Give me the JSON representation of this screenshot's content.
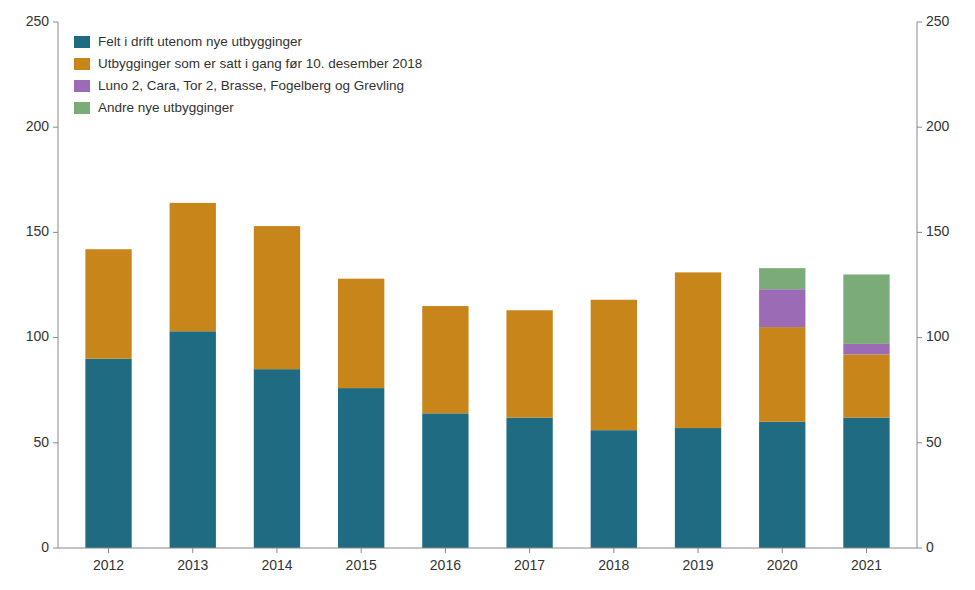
{
  "chart_data": {
    "type": "bar",
    "stacked": true,
    "categories": [
      "2012",
      "2013",
      "2014",
      "2015",
      "2016",
      "2017",
      "2018",
      "2019",
      "2020",
      "2021"
    ],
    "series": [
      {
        "name": "Felt i drift utenom nye utbygginger",
        "color": "#1e6b82",
        "values": [
          90,
          103,
          85,
          76,
          64,
          62,
          56,
          57,
          60,
          62
        ]
      },
      {
        "name": "Utbygginger som er satt i gang før 10. desember 2018",
        "color": "#c8861a",
        "values": [
          52,
          61,
          68,
          52,
          51,
          51,
          62,
          74,
          45,
          30
        ]
      },
      {
        "name": "Luno 2, Cara, Tor 2, Brasse, Fogelberg og Grevling",
        "color": "#9b6bb5",
        "values": [
          0,
          0,
          0,
          0,
          0,
          0,
          0,
          0,
          18,
          5
        ]
      },
      {
        "name": "Andre nye utbygginger",
        "color": "#7aab78",
        "values": [
          0,
          0,
          0,
          0,
          0,
          0,
          0,
          0,
          10,
          33
        ]
      }
    ],
    "ylim": [
      0,
      250
    ],
    "yticks": [
      0,
      50,
      100,
      150,
      200,
      250
    ],
    "y2lim": [
      0,
      250
    ],
    "y2ticks": [
      0,
      50,
      100,
      150,
      200,
      250
    ],
    "grid": false,
    "legend": "upper left"
  }
}
